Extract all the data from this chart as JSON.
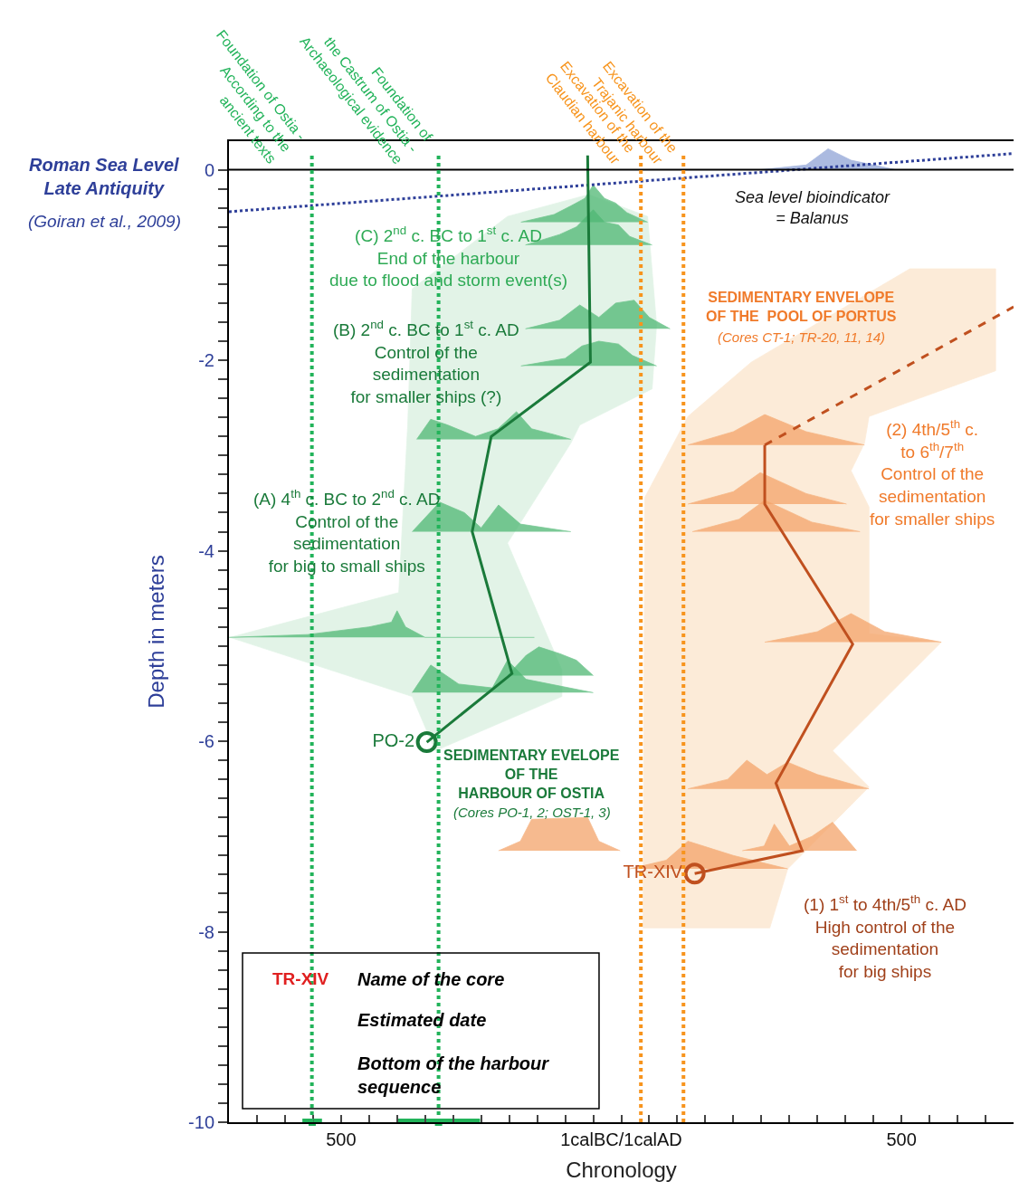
{
  "chart_data": {
    "type": "line",
    "xlabel": "Chronology",
    "ylabel": "Depth in meters",
    "xlim": [
      -700,
      700
    ],
    "ylim": [
      -10,
      0.3
    ],
    "xticks": [
      {
        "value": -650,
        "label": null
      },
      {
        "value": -600,
        "label": null
      },
      {
        "value": -550,
        "label": null
      },
      {
        "value": -500,
        "label": "500"
      },
      {
        "value": -450,
        "label": null
      },
      {
        "value": -400,
        "label": null
      },
      {
        "value": -350,
        "label": null
      },
      {
        "value": -300,
        "label": null
      },
      {
        "value": -250,
        "label": null
      },
      {
        "value": -200,
        "label": null
      },
      {
        "value": -150,
        "label": null
      },
      {
        "value": -100,
        "label": null
      },
      {
        "value": -50,
        "label": null
      },
      {
        "value": 0,
        "label": "1calBC/1calAD"
      },
      {
        "value": 50,
        "label": null
      },
      {
        "value": 100,
        "label": null
      },
      {
        "value": 150,
        "label": null
      },
      {
        "value": 200,
        "label": null
      },
      {
        "value": 250,
        "label": null
      },
      {
        "value": 300,
        "label": null
      },
      {
        "value": 350,
        "label": null
      },
      {
        "value": 400,
        "label": null
      },
      {
        "value": 450,
        "label": null
      },
      {
        "value": 500,
        "label": "500"
      },
      {
        "value": 550,
        "label": null
      },
      {
        "value": 600,
        "label": null
      },
      {
        "value": 650,
        "label": null
      }
    ],
    "yticks": [
      0,
      {
        "value": -0.2,
        "label": null
      },
      {
        "value": -0.4,
        "label": null
      },
      {
        "value": -0.6,
        "label": null
      },
      {
        "value": -0.8,
        "label": null
      },
      {
        "value": -1,
        "label": null
      },
      {
        "value": -1.2,
        "label": null
      },
      {
        "value": -1.4,
        "label": null
      },
      {
        "value": -1.6,
        "label": null
      },
      {
        "value": -1.8,
        "label": null
      },
      -2,
      {
        "value": -2.2,
        "label": null
      },
      {
        "value": -2.4,
        "label": null
      },
      {
        "value": -2.6,
        "label": null
      },
      {
        "value": -2.8,
        "label": null
      },
      {
        "value": -3,
        "label": null
      },
      {
        "value": -3.2,
        "label": null
      },
      {
        "value": -3.4,
        "label": null
      },
      {
        "value": -3.6,
        "label": null
      },
      {
        "value": -3.8,
        "label": null
      },
      -4,
      {
        "value": -4.2,
        "label": null
      },
      {
        "value": -4.4,
        "label": null
      },
      {
        "value": -4.6,
        "label": null
      },
      {
        "value": -4.8,
        "label": null
      },
      {
        "value": -5,
        "label": null
      },
      {
        "value": -5.2,
        "label": null
      },
      {
        "value": -5.4,
        "label": null
      },
      {
        "value": -5.6,
        "label": null
      },
      {
        "value": -5.8,
        "label": null
      },
      -6,
      {
        "value": -6.2,
        "label": null
      },
      {
        "value": -6.4,
        "label": null
      },
      {
        "value": -6.6,
        "label": null
      },
      {
        "value": -6.8,
        "label": null
      },
      {
        "value": -7,
        "label": null
      },
      {
        "value": -7.2,
        "label": null
      },
      {
        "value": -7.4,
        "label": null
      },
      {
        "value": -7.6,
        "label": null
      },
      {
        "value": -7.8,
        "label": null
      },
      -8,
      {
        "value": -8.2,
        "label": null
      },
      {
        "value": -8.4,
        "label": null
      },
      {
        "value": -8.6,
        "label": null
      },
      {
        "value": -8.8,
        "label": null
      },
      {
        "value": -9,
        "label": null
      },
      {
        "value": -9.2,
        "label": null
      },
      {
        "value": -9.4,
        "label": null
      },
      {
        "value": -9.6,
        "label": null
      },
      {
        "value": -9.8,
        "label": null
      },
      -10
    ],
    "legend": false,
    "series": [
      {
        "type": "area",
        "color": "#d9f0e0",
        "x": [
          -698,
          -397,
          -381,
          -373,
          -203,
          -58,
          47,
          63,
          55,
          -74,
          -90,
          -203,
          -106,
          -106,
          -332,
          -373,
          -698
        ],
        "values": [
          -4.91,
          -4.44,
          -2.68,
          -1.25,
          -0.49,
          -0.26,
          -0.49,
          -1.63,
          -2.3,
          -2.68,
          -2.87,
          -3.92,
          -5.25,
          -5.53,
          -6.1,
          -5.53,
          -4.91
        ]
      },
      {
        "type": "area",
        "color": "#fbe5cc",
        "x": [
          39,
          42,
          119,
          232,
          515,
          668,
          668,
          442,
          434,
          410,
          442,
          442,
          571,
          377,
          442,
          297,
          265,
          39
        ],
        "values": [
          -7.96,
          -3.44,
          -2.59,
          -2.02,
          -1.04,
          -1.04,
          -2.11,
          -2.59,
          -2.87,
          -3.16,
          -3.54,
          -4.87,
          -4.96,
          -6.1,
          -6.48,
          -7.34,
          -7.96,
          -7.96
        ]
      },
      {
        "type": "area",
        "color": "#8fa3d6",
        "x": [
          248,
          330,
          369,
          410,
          490
        ],
        "values": [
          0,
          0.05,
          0.22,
          0.1,
          0
        ]
      },
      {
        "type": "area",
        "color": "#4fb874",
        "x": [
          -179,
          -120,
          -90,
          -65,
          -50,
          -30,
          -10,
          10,
          47
        ],
        "values": [
          -0.55,
          -0.47,
          -0.38,
          -0.3,
          -0.16,
          -0.3,
          -0.35,
          -0.45,
          -0.55
        ]
      },
      {
        "type": "area",
        "color": "#4fb874",
        "x": [
          -171,
          -110,
          -80,
          -50,
          -30,
          -5,
          15,
          55
        ],
        "values": [
          -0.79,
          -0.68,
          -0.6,
          -0.42,
          -0.55,
          -0.58,
          -0.7,
          -0.79
        ]
      },
      {
        "type": "area",
        "color": "#4fb874",
        "x": [
          -171,
          -110,
          -74,
          -40,
          -10,
          23,
          50,
          87
        ],
        "values": [
          -1.67,
          -1.58,
          -1.42,
          -1.55,
          -1.4,
          -1.37,
          -1.55,
          -1.67
        ]
      },
      {
        "type": "area",
        "color": "#4fb874",
        "x": [
          -179,
          -100,
          -70,
          -40,
          -5,
          20,
          63
        ],
        "values": [
          -2.06,
          -1.98,
          -1.85,
          -1.8,
          -1.83,
          -1.95,
          -2.06
        ]
      },
      {
        "type": "area",
        "color": "#4fb874",
        "x": [
          -365,
          -340,
          -310,
          -260,
          -220,
          -187,
          -160,
          -120,
          -90
        ],
        "values": [
          -2.83,
          -2.62,
          -2.68,
          -2.8,
          -2.72,
          -2.54,
          -2.72,
          -2.78,
          -2.83
        ]
      },
      {
        "type": "area",
        "color": "#4fb874",
        "x": [
          -373,
          -324,
          -280,
          -250,
          -219,
          -180,
          -90
        ],
        "values": [
          -3.8,
          -3.49,
          -3.6,
          -3.76,
          -3.52,
          -3.72,
          -3.8
        ]
      },
      {
        "type": "area",
        "color": "#4fb874",
        "x": [
          -700,
          -560,
          -450,
          -410,
          -400,
          -385,
          -350,
          -155
        ],
        "values": [
          -4.91,
          -4.88,
          -4.8,
          -4.75,
          -4.63,
          -4.8,
          -4.91,
          -4.91
        ]
      },
      {
        "type": "area",
        "color": "#4fb874",
        "x": [
          -203,
          -170,
          -147,
          -110,
          -80,
          -50
        ],
        "values": [
          -5.31,
          -5.1,
          -5.01,
          -5.08,
          -5.15,
          -5.31
        ]
      },
      {
        "type": "area",
        "color": "#4fb874",
        "x": [
          -373,
          -340,
          -290,
          -230,
          -203,
          -170,
          -50
        ],
        "values": [
          -5.49,
          -5.2,
          -5.4,
          -5.44,
          -5.15,
          -5.35,
          -5.49
        ]
      },
      {
        "type": "area",
        "color": "#f4a46a",
        "x": [
          119,
          200,
          256,
          330,
          434
        ],
        "values": [
          -2.89,
          -2.75,
          -2.57,
          -2.75,
          -2.89
        ]
      },
      {
        "type": "area",
        "color": "#f4a46a",
        "x": [
          119,
          200,
          248,
          330,
          402
        ],
        "values": [
          -3.51,
          -3.38,
          -3.18,
          -3.4,
          -3.51
        ]
      },
      {
        "type": "area",
        "color": "#f4a46a",
        "x": [
          127,
          210,
          256,
          340,
          426
        ],
        "values": [
          -3.8,
          -3.67,
          -3.47,
          -3.7,
          -3.8
        ]
      },
      {
        "type": "area",
        "color": "#f4a46a",
        "x": [
          256,
          350,
          410,
          470,
          571
        ],
        "values": [
          -4.96,
          -4.85,
          -4.66,
          -4.85,
          -4.96
        ]
      },
      {
        "type": "area",
        "color": "#f4a46a",
        "x": [
          119,
          190,
          224,
          260,
          297,
          350,
          442
        ],
        "values": [
          -6.5,
          -6.4,
          -6.2,
          -6.35,
          -6.22,
          -6.35,
          -6.5
        ]
      },
      {
        "type": "area",
        "color": "#f4a46a",
        "x": [
          -219,
          -180,
          -160,
          -60,
          -40,
          -2
        ],
        "values": [
          -7.15,
          -7.05,
          -6.82,
          -6.8,
          -7.05,
          -7.15
        ]
      },
      {
        "type": "area",
        "color": "#f4a46a",
        "x": [
          216,
          255,
          273,
          300,
          340,
          377,
          420
        ],
        "values": [
          -7.15,
          -7.1,
          -6.87,
          -7.1,
          -7.0,
          -6.85,
          -7.15
        ]
      },
      {
        "type": "area",
        "color": "#f4a46a",
        "x": [
          15,
          80,
          119,
          200,
          297
        ],
        "values": [
          -7.34,
          -7.25,
          -7.05,
          -7.2,
          -7.34
        ]
      },
      {
        "color": "#2e3f99",
        "line_style": "dotted",
        "x": [
          -700,
          700
        ],
        "values": [
          -0.44,
          0.17
        ]
      },
      {
        "color": "#1a7a3a",
        "line_style": "solid",
        "x": [
          -60,
          -55,
          -232,
          -266,
          -195,
          -347
        ],
        "values": [
          0.15,
          -2.02,
          -2.8,
          -3.8,
          -5.29,
          -6.01
        ]
      },
      {
        "color": "#c0501f",
        "line_style": "solid",
        "x": [
          131,
          323,
          276,
          413,
          256,
          256
        ],
        "values": [
          -7.39,
          -7.15,
          -6.44,
          -4.98,
          -3.51,
          -2.89
        ]
      },
      {
        "color": "#c0501f",
        "line_style": "dashed",
        "x": [
          256,
          700
        ],
        "values": [
          -2.89,
          -1.44
        ]
      },
      {
        "type": "scatter",
        "color": "#22b35a",
        "marker": "square",
        "x": [
          -551.5,
          -326
        ],
        "values": [
          -10,
          -10
        ],
        "xerrors": [
          [
            -569,
            -534
          ],
          [
            -400,
            -252
          ]
        ]
      },
      {
        "type": "scatter",
        "name": "PO-2",
        "color": "#1a7a3a",
        "marker": "circle",
        "x": [
          -347
        ],
        "values": [
          -6.01
        ]
      },
      {
        "type": "scatter",
        "name": "TR-XIV",
        "color": "#c0501f",
        "marker": "circle",
        "x": [
          131
        ],
        "values": [
          -7.39
        ]
      }
    ],
    "ref_lines": [
      {
        "axis": "y",
        "value": 0,
        "color": "#000000",
        "line_style": "solid"
      },
      {
        "axis": "x",
        "value": -552,
        "color": "#22b35a",
        "line_style": "dotted",
        "label": "Foundation of Ostia -\nAccording to the\nancient texts"
      },
      {
        "axis": "x",
        "value": -326,
        "color": "#22b35a",
        "line_style": "dotted",
        "label": "Foundation of\nthe Castrum of Ostia -\nArchaeological evidence"
      },
      {
        "axis": "x",
        "value": 35,
        "color": "#f7941d",
        "line_style": "dotted",
        "label": "Excavation of the\nClaudian harbour"
      },
      {
        "axis": "x",
        "value": 111,
        "color": "#f7941d",
        "line_style": "dotted",
        "label": "Excavation of the\nTrajanic harbour"
      }
    ],
    "annotations": [
      "Roman Sea Level\nLate Antiquity",
      "(Goiran et al., 2009)",
      "TR-XIV",
      "Name of the core",
      "Estimated date",
      "Bottom of the harbour\nsequence",
      "Sea level bioindicator\n= Balanus",
      "(C) 2$^{nd}$ c. BC to 1$^{st}$ c. AD\nEnd of the harbour\ndue to flood and storm event(s)",
      "(B) 2$^{nd}$ c. BC to 1$^{st}$ c. AD\nControl of the\nsedimentation\nfor smaller ships (?)",
      "(A) 4$^{th}$ c. BC to 2$^{nd}$ c. AD\nControl of the\nsedimentation\nfor big to small ships",
      "SEDIMENTARY EVELOPE\nOF THE\nHARBOUR OF OSTIA",
      "(Cores PO-1, 2; OST-1, 3)",
      "SEDIMENTARY ENVELOPE\nOF THE  POOL OF PORTUS",
      "(Cores CT-1; TR-20, 11, 14)",
      "(2) 4th/5$^{th}$ c.\nto 6$^{th}$/7$^{th}$\nControl of the\nsedimentation\nfor smaller ships",
      "(1) 1$^{st}$ to 4th/5$^{th}$ c. AD\nHigh control of the\nsedimentation\nfor big ships"
    ]
  }
}
